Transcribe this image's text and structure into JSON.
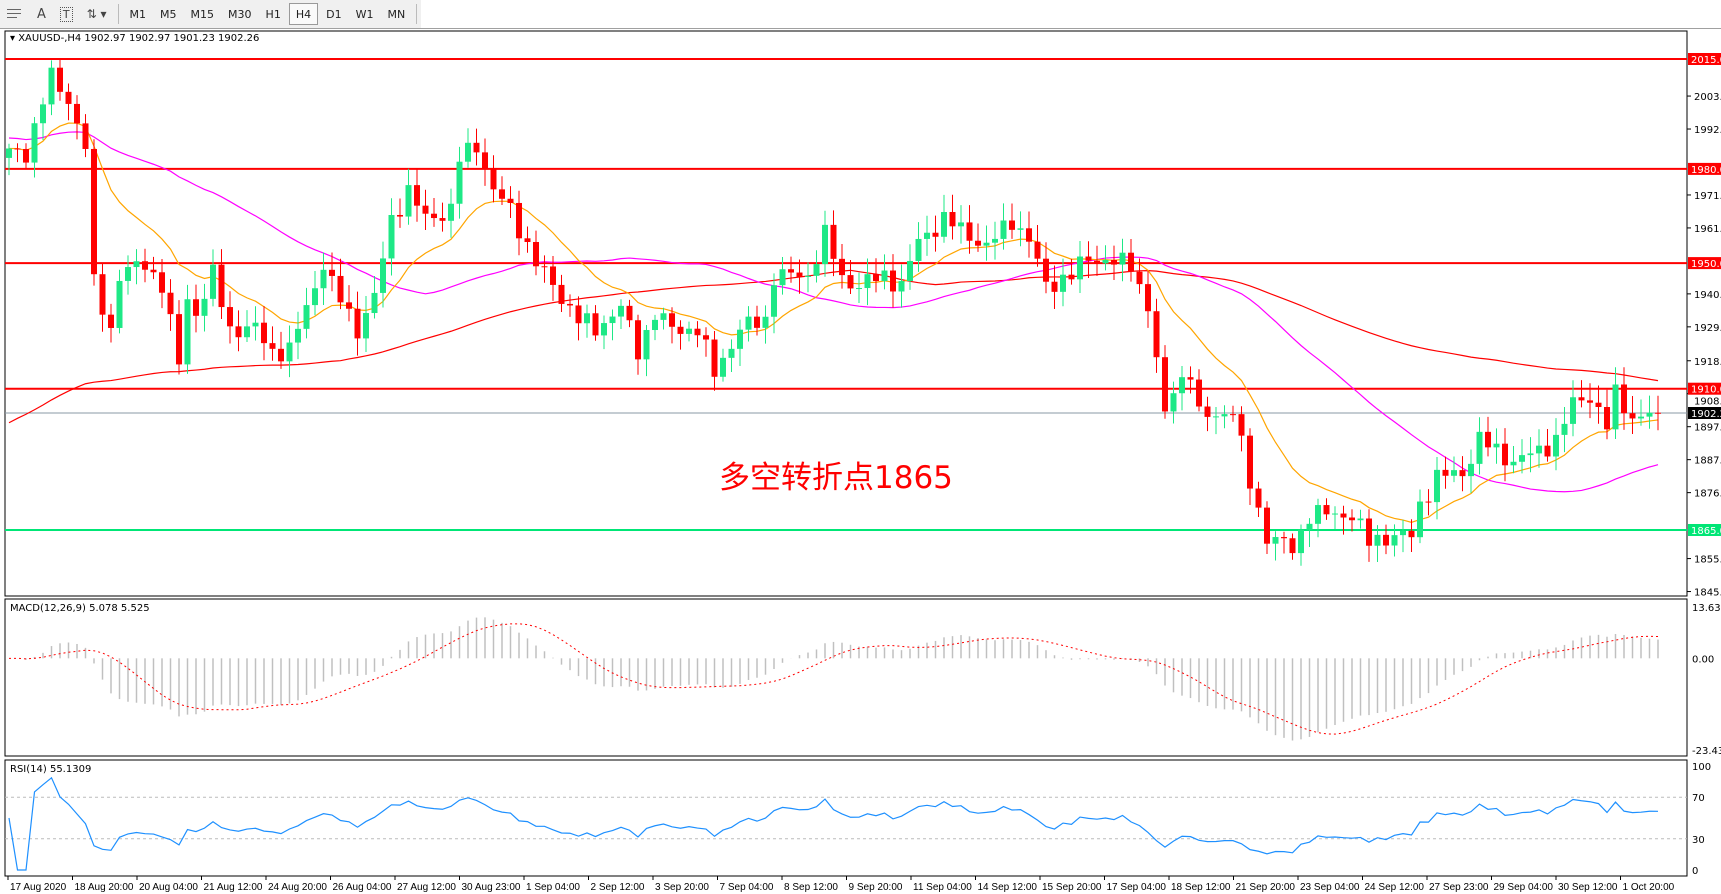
{
  "toolbar": {
    "icons": [
      "grid-icon",
      "text-icon",
      "text-label-icon",
      "arrows-icon"
    ],
    "text_icon_glyph": "A",
    "text_label_glyph": "T",
    "timeframes": [
      {
        "label": "M1",
        "active": false
      },
      {
        "label": "M5",
        "active": false
      },
      {
        "label": "M15",
        "active": false
      },
      {
        "label": "M30",
        "active": false
      },
      {
        "label": "H1",
        "active": false
      },
      {
        "label": "H4",
        "active": true
      },
      {
        "label": "D1",
        "active": false
      },
      {
        "label": "W1",
        "active": false
      },
      {
        "label": "MN",
        "active": false
      }
    ]
  },
  "chart": {
    "symbol_line": "XAUUSD-,H4  1902.97 1902.97 1901.23 1902.26",
    "annotation": "多空转折点1865",
    "current_price": "1902.26",
    "price_range": [
      1845.4,
      2015.0
    ],
    "price_ticks": [
      "2003.20",
      "1992.70",
      "1971.70",
      "1961.20",
      "1940.20",
      "1929.70",
      "1918.90",
      "1908.40",
      "1897.90",
      "1887.40",
      "1876.90",
      "1855.90",
      "1845.40"
    ],
    "levels": [
      {
        "price": 2015.0,
        "label": "2015.00",
        "color": "#ff0000"
      },
      {
        "price": 1980.0,
        "label": "1980.00",
        "color": "#ff0000"
      },
      {
        "price": 1950.0,
        "label": "1950.00",
        "color": "#ff0000"
      },
      {
        "price": 1910.0,
        "label": "1910.00",
        "color": "#ff0000"
      },
      {
        "price": 1865.0,
        "label": "1865.00",
        "color": "#00e676"
      }
    ],
    "colors": {
      "bull": "#1ee886",
      "bear": "#ff0000",
      "ma_fast": "#ffa500",
      "ma_mid": "#ff00ff",
      "ma_slow": "#ff0000",
      "rsi": "#1e90ff",
      "macd_hist": "#c0c0c0",
      "macd_signal": "#ff0000"
    },
    "close_path": [
      [
        0,
        1985
      ],
      [
        2,
        1985
      ],
      [
        4,
        2002
      ],
      [
        5,
        2009
      ],
      [
        7,
        2002
      ],
      [
        9,
        1987
      ],
      [
        10,
        1943
      ],
      [
        12,
        1929
      ],
      [
        13,
        1946
      ],
      [
        16,
        1950
      ],
      [
        18,
        1943
      ],
      [
        20,
        1918
      ],
      [
        21,
        1939
      ],
      [
        22,
        1934
      ],
      [
        24,
        1946
      ],
      [
        26,
        1929
      ],
      [
        29,
        1929
      ],
      [
        31,
        1922
      ],
      [
        33,
        1922
      ],
      [
        35,
        1936
      ],
      [
        37,
        1950
      ],
      [
        38,
        1943
      ],
      [
        41,
        1929
      ],
      [
        43,
        1939
      ],
      [
        45,
        1964
      ],
      [
        47,
        1973
      ],
      [
        49,
        1964
      ],
      [
        52,
        1967
      ],
      [
        53,
        1983
      ],
      [
        55,
        1988
      ],
      [
        57,
        1973
      ],
      [
        59,
        1967
      ],
      [
        62,
        1950
      ],
      [
        64,
        1943
      ],
      [
        67,
        1932
      ],
      [
        69,
        1929
      ],
      [
        72,
        1936
      ],
      [
        74,
        1922
      ],
      [
        76,
        1934
      ],
      [
        78,
        1929
      ],
      [
        81,
        1929
      ],
      [
        83,
        1915
      ],
      [
        86,
        1929
      ],
      [
        89,
        1932
      ],
      [
        90,
        1946
      ],
      [
        94,
        1946
      ],
      [
        96,
        1959
      ],
      [
        98,
        1945
      ],
      [
        100,
        1943
      ],
      [
        103,
        1946
      ],
      [
        105,
        1943
      ],
      [
        107,
        1957
      ],
      [
        110,
        1964
      ],
      [
        113,
        1959
      ],
      [
        115,
        1955
      ],
      [
        118,
        1964
      ],
      [
        120,
        1957
      ],
      [
        122,
        1943
      ],
      [
        125,
        1946
      ],
      [
        127,
        1952
      ],
      [
        130,
        1950
      ],
      [
        132,
        1950
      ],
      [
        134,
        1936
      ],
      [
        136,
        1901
      ],
      [
        137,
        1911
      ],
      [
        139,
        1915
      ],
      [
        140,
        1901
      ],
      [
        144,
        1903
      ],
      [
        146,
        1880
      ],
      [
        148,
        1863
      ],
      [
        151,
        1859
      ],
      [
        153,
        1870
      ],
      [
        156,
        1870
      ],
      [
        158,
        1870
      ],
      [
        160,
        1861
      ],
      [
        162,
        1863
      ],
      [
        165,
        1863
      ],
      [
        166,
        1873
      ],
      [
        168,
        1882
      ],
      [
        171,
        1883
      ],
      [
        173,
        1894
      ],
      [
        175,
        1890
      ],
      [
        177,
        1887
      ],
      [
        180,
        1890
      ],
      [
        182,
        1894
      ],
      [
        184,
        1905
      ],
      [
        186,
        1908
      ],
      [
        188,
        1898
      ],
      [
        189,
        1908
      ],
      [
        191,
        1901
      ],
      [
        194,
        1902.26
      ]
    ]
  },
  "macd": {
    "label": "MACD(12,26,9) 5.078 5.525",
    "top": "13.632",
    "zero": "0.00",
    "bottom": "-23.435",
    "range": [
      -23.435,
      13.632
    ]
  },
  "rsi": {
    "label": "RSI(14) 55.1309",
    "ticks": [
      "100",
      "70",
      "30",
      "0"
    ],
    "levels": [
      70,
      30
    ]
  },
  "time_axis": [
    "17 Aug 2020",
    "18 Aug 20:00",
    "20 Aug 04:00",
    "21 Aug 12:00",
    "24 Aug 20:00",
    "26 Aug 04:00",
    "27 Aug 12:00",
    "30 Aug 23:00",
    "1 Sep 04:00",
    "2 Sep 12:00",
    "3 Sep 20:00",
    "7 Sep 04:00",
    "8 Sep 12:00",
    "9 Sep 20:00",
    "11 Sep 04:00",
    "14 Sep 12:00",
    "15 Sep 20:00",
    "17 Sep 04:00",
    "18 Sep 12:00",
    "21 Sep 20:00",
    "23 Sep 04:00",
    "24 Sep 12:00",
    "27 Sep 23:00",
    "29 Sep 04:00",
    "30 Sep 12:00",
    "1 Oct 20:00"
  ]
}
